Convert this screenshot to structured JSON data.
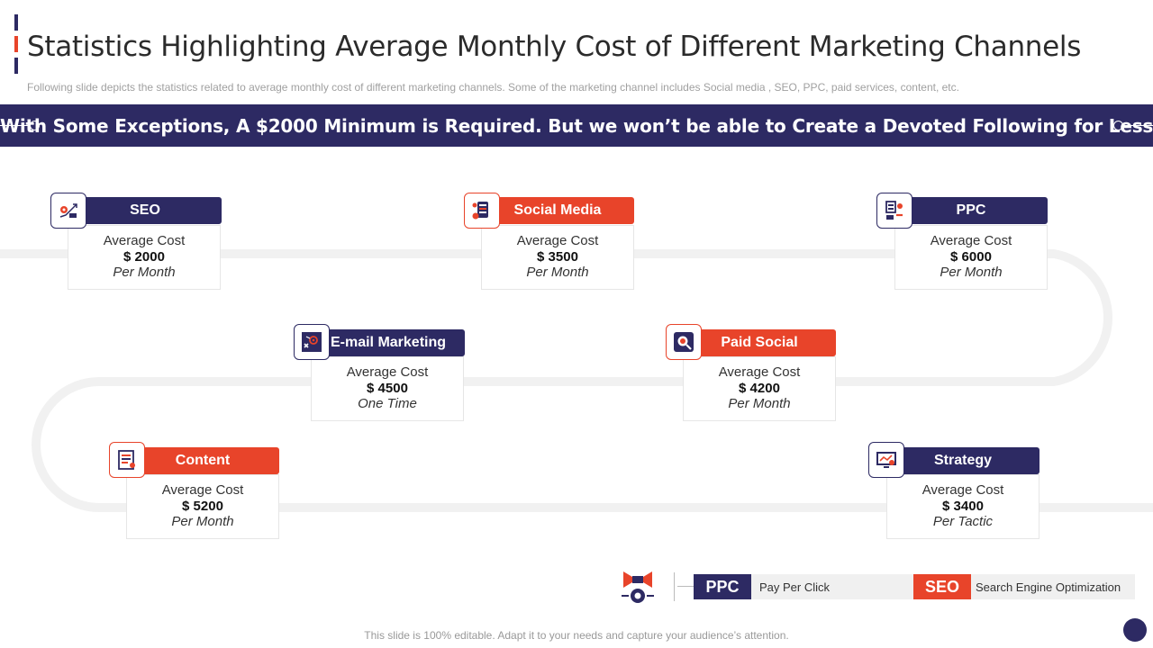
{
  "title": "Statistics Highlighting Average Monthly Cost of Different Marketing Channels",
  "subtitle": "Following slide depicts the statistics related to average  monthly cost of different  marketing channels. Some of the marketing channel includes Social media , SEO, PPC, paid services, content, etc.",
  "banner": "With Some Exceptions,  A $2000 Minimum is Required.  But we won’t be able to Create  a Devoted Following for Less",
  "colors": {
    "navy": "#2d2a63",
    "orange": "#e8442a",
    "track": "#f1f1f1"
  },
  "channels": [
    {
      "name": "SEO",
      "line1": "Average Cost",
      "amount": "$ 2000",
      "period": "Per Month",
      "color": "navy",
      "icon": "seo-chart-icon"
    },
    {
      "name": "Social Media",
      "line1": "Average Cost",
      "amount": "$ 3500",
      "period": "Per Month",
      "color": "orange",
      "icon": "social-media-icon"
    },
    {
      "name": "PPC",
      "line1": "Average Cost",
      "amount": "$ 6000",
      "period": "Per Month",
      "color": "navy",
      "icon": "ppc-icon"
    },
    {
      "name": "E-mail Marketing",
      "line1": "Average Cost",
      "amount": "$ 4500",
      "period": "One Time",
      "color": "navy",
      "icon": "email-target-icon"
    },
    {
      "name": "Paid Social",
      "line1": "Average Cost",
      "amount": "$ 4200",
      "period": "Per Month",
      "color": "orange",
      "icon": "paid-social-icon"
    },
    {
      "name": "Content",
      "line1": "Average Cost",
      "amount": "$ 5200",
      "period": "Per Month",
      "color": "orange",
      "icon": "content-document-icon"
    },
    {
      "name": "Strategy",
      "line1": "Average Cost",
      "amount": "$ 3400",
      "period": "Per Tactic",
      "color": "navy",
      "icon": "strategy-screen-icon"
    }
  ],
  "legend": [
    {
      "key": "PPC",
      "value": "Pay Per Click"
    },
    {
      "key": "SEO",
      "value": "Search Engine Optimization"
    }
  ],
  "footer": "This slide is 100% editable. Adapt it to your needs and capture your audience’s attention."
}
